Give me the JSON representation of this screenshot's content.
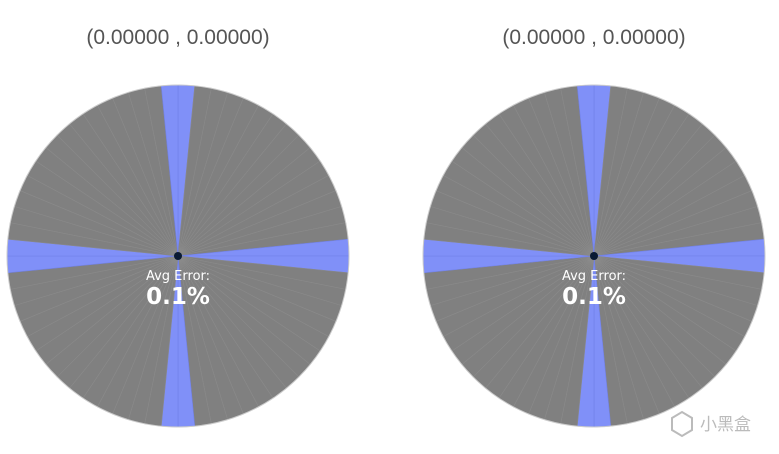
{
  "panels": [
    {
      "coordinates": "(0.00000 , 0.00000)",
      "error_label": "Avg Error:",
      "error_value": "0.1%"
    },
    {
      "coordinates": "(0.00000 , 0.00000)",
      "error_label": "Avg Error:",
      "error_value": "0.1%"
    }
  ],
  "watermark": "小黑盒"
}
